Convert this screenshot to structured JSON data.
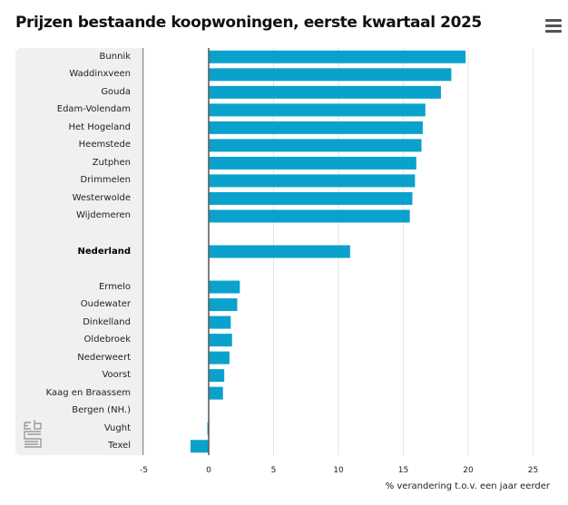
{
  "header": {
    "title": "Prijzen bestaande koopwoningen, eerste kwartaal 2025",
    "menu_icon": "hamburger-menu-icon"
  },
  "branding": {
    "logo": "cbs-logo-icon"
  },
  "colors": {
    "bar": "#0aa2cc",
    "panel": "#f0f0f0",
    "axis": "#555555",
    "grid": "#e2e6ea"
  },
  "chart_data": {
    "type": "bar",
    "orientation": "horizontal",
    "title": "Prijzen bestaande koopwoningen, eerste kwartaal 2025",
    "xlabel": "% verandering t.o.v. een jaar eerder",
    "ylabel": "",
    "xlim": [
      -5,
      25
    ],
    "xticks": [
      -5,
      0,
      5,
      10,
      15,
      20,
      25
    ],
    "grid": true,
    "legend": "none",
    "categories": [
      "Bunnik",
      "Waddinxveen",
      "Gouda",
      "Edam-Volendam",
      "Het Hogeland",
      "Heemstede",
      "Zutphen",
      "Drimmelen",
      "Westerwolde",
      "Wijdemeren",
      "",
      "Nederland",
      "",
      "Ermelo",
      "Oudewater",
      "Dinkelland",
      "Oldebroek",
      "Nederweert",
      "Voorst",
      "Kaag en Braassem",
      "Bergen (NH.)",
      "Vught",
      "Texel"
    ],
    "bold_categories": [
      "Nederland"
    ],
    "values": [
      19.8,
      18.7,
      17.9,
      16.7,
      16.5,
      16.4,
      16.0,
      15.9,
      15.7,
      15.5,
      null,
      10.9,
      null,
      2.4,
      2.2,
      1.7,
      1.8,
      1.6,
      1.2,
      1.1,
      0.0,
      -0.1,
      -1.4
    ]
  }
}
